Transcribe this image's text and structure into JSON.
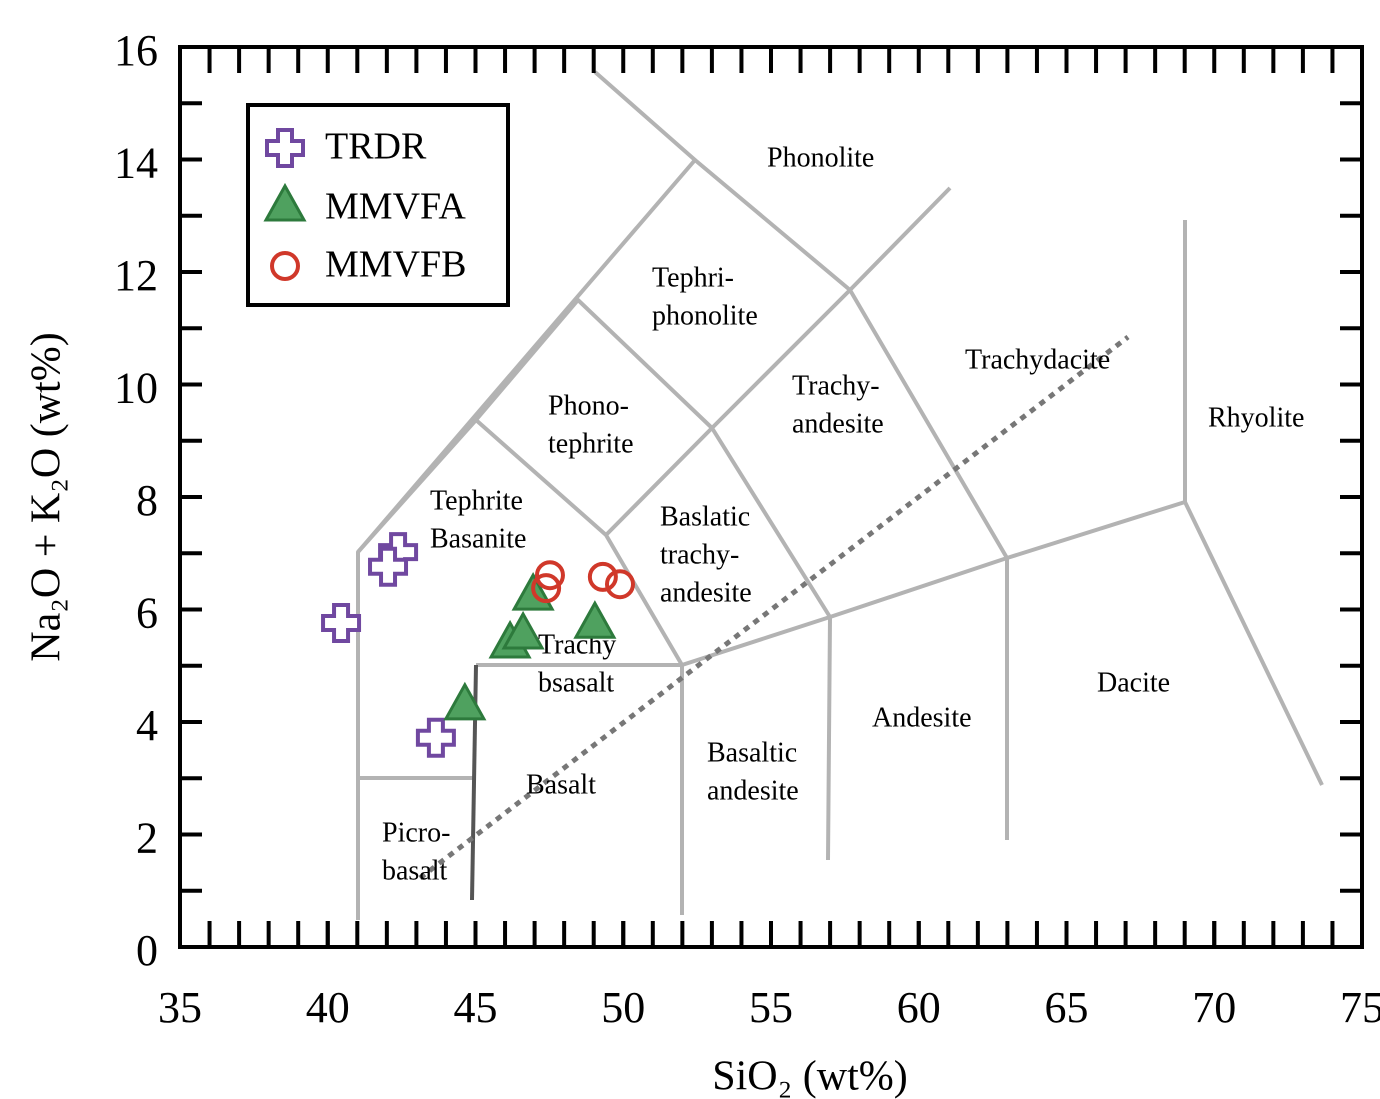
{
  "chart_data": {
    "type": "scatter",
    "x_label": "SiO₂ (wt%)",
    "y_label": "Na₂O + K₂O (wt%)",
    "xlim": [
      35,
      75
    ],
    "xticks": [
      35,
      40,
      45,
      50,
      55,
      60,
      65,
      70,
      75
    ],
    "x_minor_step": 1,
    "ylim": [
      0,
      16
    ],
    "yticks": [
      0,
      2,
      4,
      6,
      8,
      10,
      12,
      14,
      16
    ],
    "y_minor_step": 1,
    "legend": "upper left",
    "series": [
      {
        "name": "TRDR",
        "marker": "plus",
        "color": "#7048a0",
        "x": [
          42.38,
          42.04,
          40.45,
          43.66
        ],
        "values": [
          7.02,
          6.76,
          5.76,
          3.72
        ]
      },
      {
        "name": "MMVFA",
        "marker": "triangle",
        "color": "#4fa15f",
        "x": [
          46.95,
          49.04,
          46.17,
          46.61,
          44.64
        ],
        "values": [
          6.22,
          5.72,
          5.37,
          5.53,
          4.27
        ]
      },
      {
        "name": "MMVFB",
        "marker": "circle",
        "color": "#d0382a",
        "x": [
          47.52,
          47.39,
          49.31,
          49.89
        ],
        "values": [
          6.61,
          6.38,
          6.58,
          6.45
        ]
      }
    ],
    "annotations": [
      [
        "Phonolite"
      ],
      [
        "Tephri-",
        "phonolite"
      ],
      [
        "Trachydacite"
      ],
      [
        "Trachy-",
        "andesite"
      ],
      [
        "Rhyolite"
      ],
      [
        "Phono-",
        "tephrite"
      ],
      [
        "Tephrite",
        "Basanite"
      ],
      [
        "Baslatic",
        "trachy-",
        "andesite"
      ],
      [
        "Trachy",
        "bsasalt"
      ],
      [
        "Dacite"
      ],
      [
        "Andesite"
      ],
      [
        "Basaltic",
        "andesite"
      ],
      [
        "Basalt"
      ],
      [
        "Picro-",
        "basalt"
      ]
    ]
  }
}
